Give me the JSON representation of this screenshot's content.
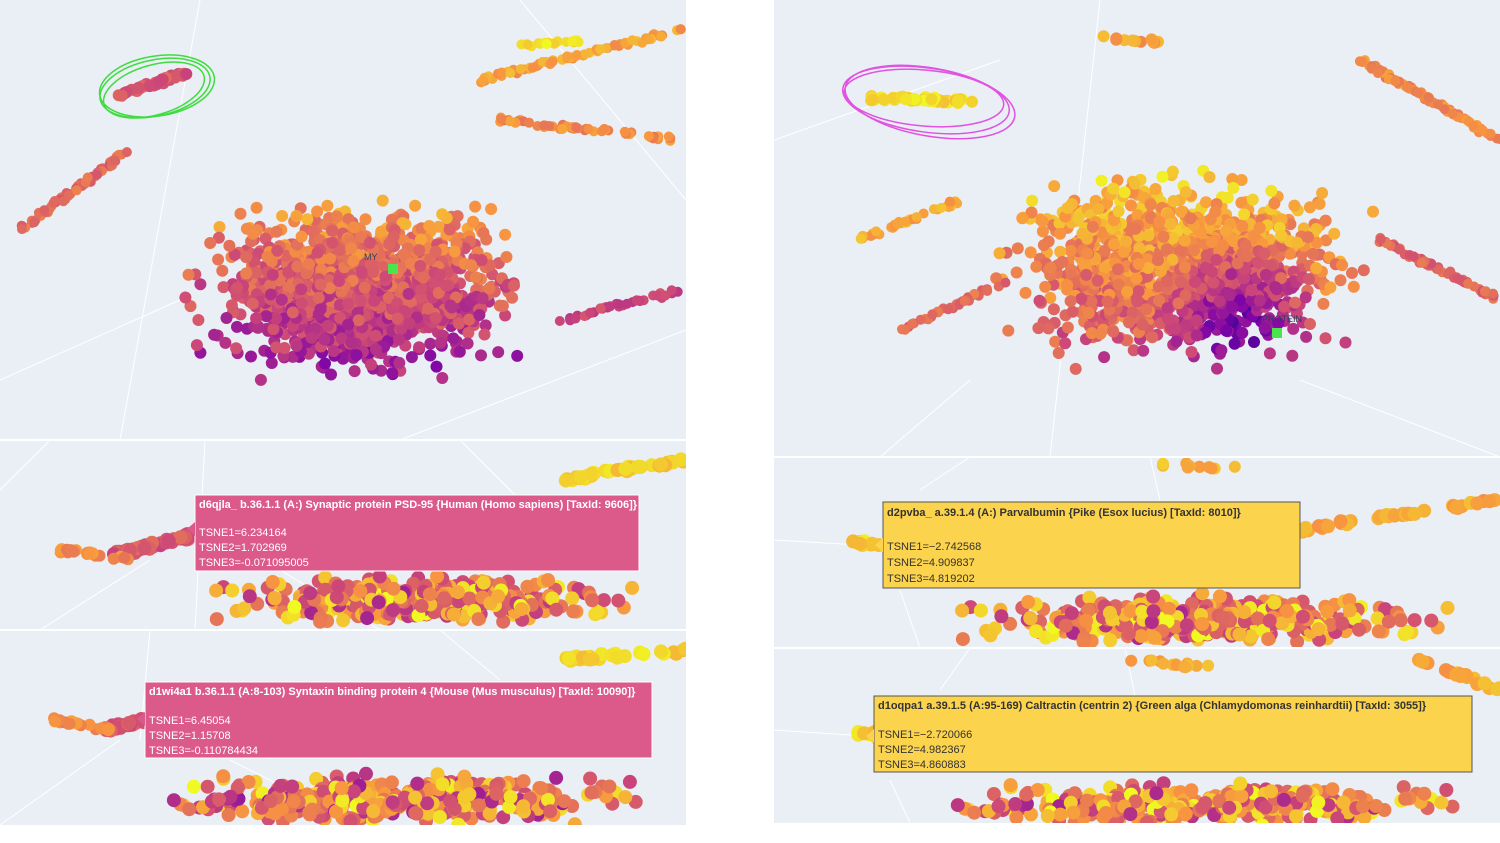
{
  "left_panel": {
    "marker_label": "MY",
    "tooltips": [
      {
        "title": "d6qjla_ b.36.1.1 (A:) Synaptic protein PSD-95 {Human (Homo sapiens) [TaxId: 9606]}",
        "lines": [
          "TSNE1=6.234164",
          "TSNE2=1.702969",
          "TSNE3=-0.071095005"
        ]
      },
      {
        "title": "d1wi4a1 b.36.1.1 (A:8-103) Syntaxin binding protein 4 {Mouse (Mus musculus) [TaxId: 10090]}",
        "lines": [
          "TSNE1=6.45054",
          "TSNE2=1.15708",
          "TSNE3=-0.110784434"
        ]
      }
    ]
  },
  "right_panel": {
    "marker_label": "PROTEIN",
    "tooltips": [
      {
        "title": "d2pvba_ a.39.1.4 (A:) Parvalbumin {Pike (Esox lucius) [TaxId: 8010]}",
        "lines": [
          "TSNE1=−2.742568",
          "TSNE2=4.909837",
          "TSNE3=4.819202"
        ]
      },
      {
        "title": "d1oqpa1 a.39.1.5 (A:95-169) Caltractin (centrin 2) {Green alga (Chlamydomonas reinhardtii) [TaxId: 3055]}",
        "lines": [
          "TSNE1=−2.720066",
          "TSNE2=4.982367",
          "TSNE3=4.860883"
        ]
      }
    ]
  }
}
